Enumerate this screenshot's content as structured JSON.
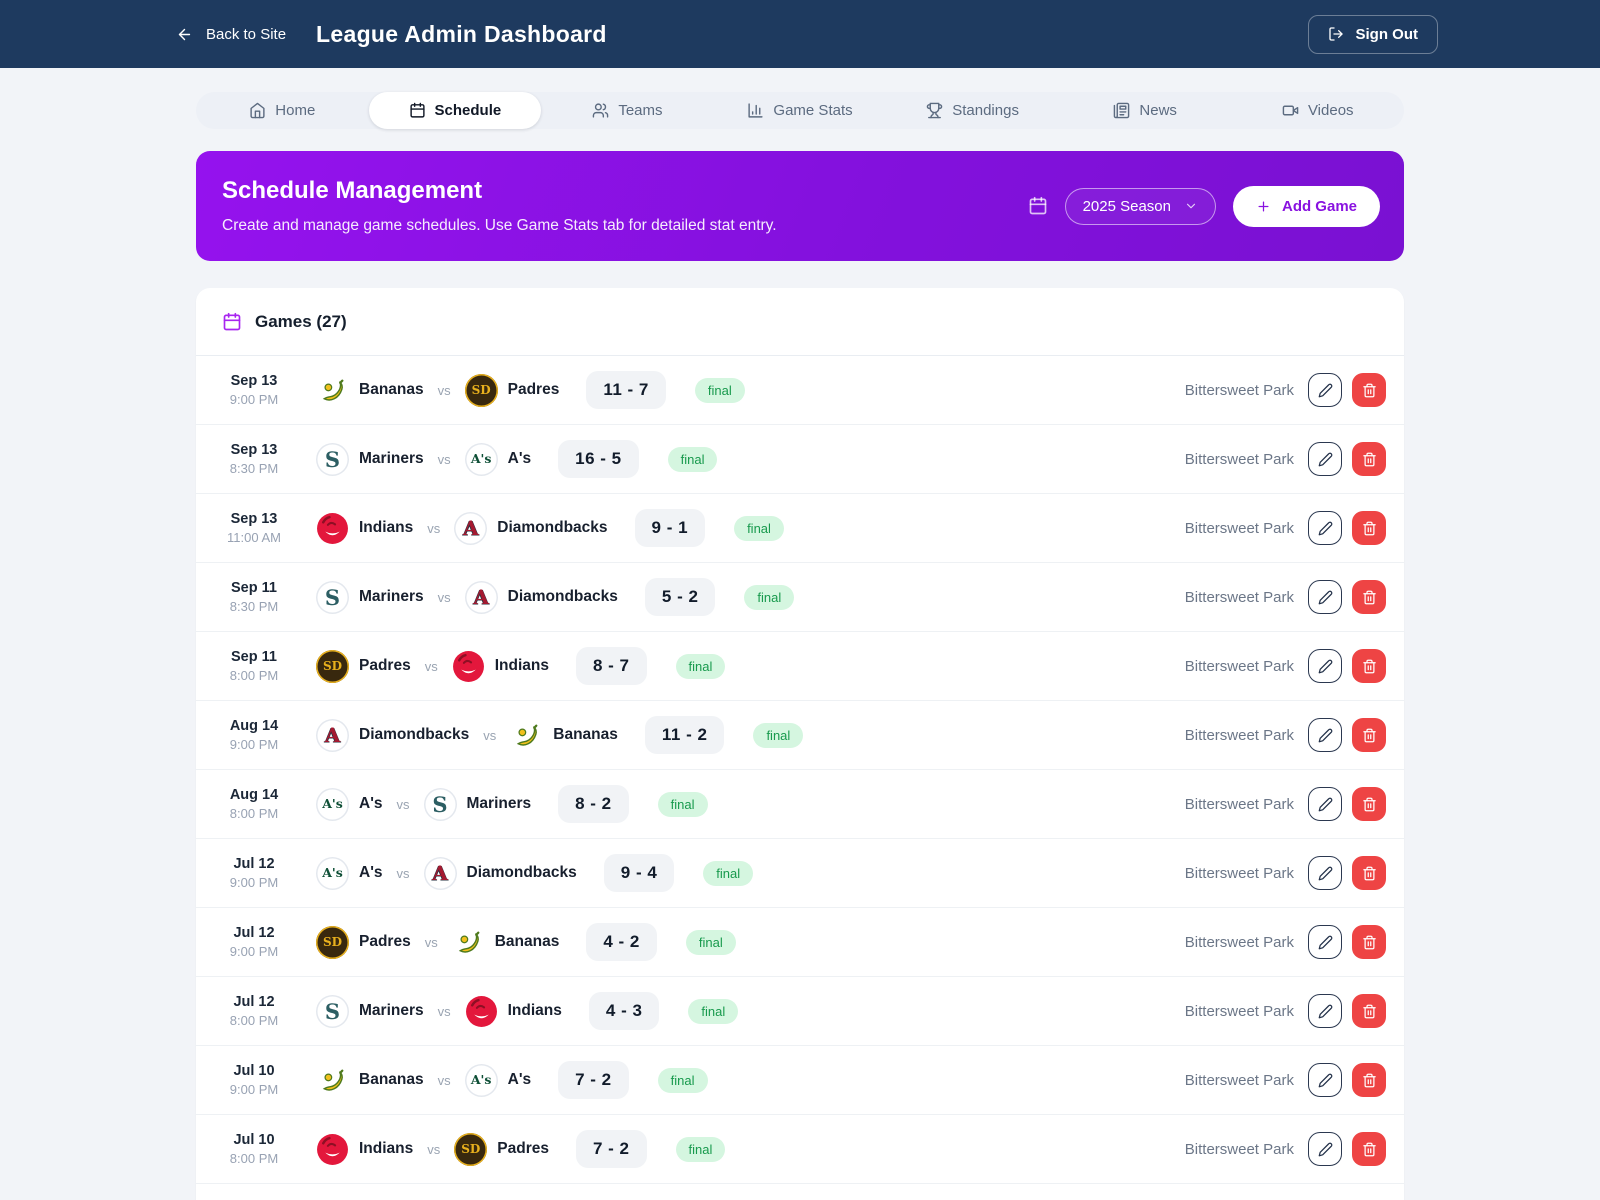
{
  "header": {
    "back_label": "Back to Site",
    "title": "League Admin Dashboard",
    "signout_label": "Sign Out"
  },
  "nav": {
    "tabs": [
      {
        "label": "Home",
        "icon": "home-icon",
        "active": false
      },
      {
        "label": "Schedule",
        "icon": "calendar-icon",
        "active": true
      },
      {
        "label": "Teams",
        "icon": "users-icon",
        "active": false
      },
      {
        "label": "Game Stats",
        "icon": "chart-icon",
        "active": false
      },
      {
        "label": "Standings",
        "icon": "trophy-icon",
        "active": false
      },
      {
        "label": "News",
        "icon": "news-icon",
        "active": false
      },
      {
        "label": "Videos",
        "icon": "video-icon",
        "active": false
      }
    ]
  },
  "banner": {
    "title": "Schedule Management",
    "subtitle": "Create and manage game schedules. Use Game Stats tab for detailed stat entry.",
    "season_icon": "calendar-icon",
    "season_value": "2025 Season",
    "add_game_label": "Add Game"
  },
  "games": {
    "title": "Games (27)",
    "vs_label": "vs",
    "rows": [
      {
        "date": "Sep 13",
        "time": "9:00 PM",
        "home": "Bananas",
        "away": "Padres",
        "score": "11 - 7",
        "status": "final",
        "venue": "Bittersweet Park"
      },
      {
        "date": "Sep 13",
        "time": "8:30 PM",
        "home": "Mariners",
        "away": "A's",
        "score": "16 - 5",
        "status": "final",
        "venue": "Bittersweet Park"
      },
      {
        "date": "Sep 13",
        "time": "11:00 AM",
        "home": "Indians",
        "away": "Diamondbacks",
        "score": "9 - 1",
        "status": "final",
        "venue": "Bittersweet Park"
      },
      {
        "date": "Sep 11",
        "time": "8:30 PM",
        "home": "Mariners",
        "away": "Diamondbacks",
        "score": "5 - 2",
        "status": "final",
        "venue": "Bittersweet Park"
      },
      {
        "date": "Sep 11",
        "time": "8:00 PM",
        "home": "Padres",
        "away": "Indians",
        "score": "8 - 7",
        "status": "final",
        "venue": "Bittersweet Park"
      },
      {
        "date": "Aug 14",
        "time": "9:00 PM",
        "home": "Diamondbacks",
        "away": "Bananas",
        "score": "11 - 2",
        "status": "final",
        "venue": "Bittersweet Park"
      },
      {
        "date": "Aug 14",
        "time": "8:00 PM",
        "home": "A's",
        "away": "Mariners",
        "score": "8 - 2",
        "status": "final",
        "venue": "Bittersweet Park"
      },
      {
        "date": "Jul 12",
        "time": "9:00 PM",
        "home": "A's",
        "away": "Diamondbacks",
        "score": "9 - 4",
        "status": "final",
        "venue": "Bittersweet Park"
      },
      {
        "date": "Jul 12",
        "time": "9:00 PM",
        "home": "Padres",
        "away": "Bananas",
        "score": "4 - 2",
        "status": "final",
        "venue": "Bittersweet Park"
      },
      {
        "date": "Jul 12",
        "time": "8:00 PM",
        "home": "Mariners",
        "away": "Indians",
        "score": "4 - 3",
        "status": "final",
        "venue": "Bittersweet Park"
      },
      {
        "date": "Jul 10",
        "time": "9:00 PM",
        "home": "Bananas",
        "away": "A's",
        "score": "7 - 2",
        "status": "final",
        "venue": "Bittersweet Park"
      },
      {
        "date": "Jul 10",
        "time": "8:00 PM",
        "home": "Indians",
        "away": "Padres",
        "score": "7 - 2",
        "status": "final",
        "venue": "Bittersweet Park"
      }
    ]
  },
  "team_logos": {
    "Bananas": {
      "kind": "banana",
      "colors": {
        "fruit": "#f2c11d",
        "leaf": "#4e7a1d",
        "bg": "#ffffff"
      }
    },
    "Padres": {
      "kind": "monogram",
      "text": "SD",
      "bg": "#38280e",
      "fg": "#e8b01d",
      "ring": "#e8b01d",
      "size": "12px"
    },
    "Mariners": {
      "kind": "monogram",
      "text": "S",
      "bg": "#ffffff",
      "fg": "#2c5e63",
      "ring": "#e4e8ee",
      "size": "21px"
    },
    "A's": {
      "kind": "monogram",
      "text": "A's",
      "bg": "#ffffff",
      "fg": "#0e4f36",
      "ring": "#e4e8ee",
      "size": "12.5px"
    },
    "Indians": {
      "kind": "wahoo",
      "colors": {
        "face": "#e3173c",
        "grin": "#ffffff",
        "dark": "#8e0f24"
      }
    },
    "Diamondbacks": {
      "kind": "monogram",
      "text": "A",
      "bg": "#ffffff",
      "fg": "#a51930",
      "ring": "#e4e8ee",
      "size": "20px",
      "outline": "#26323f"
    }
  },
  "colors": {
    "header_bg": "#1e3a5f",
    "page_bg": "#f2f4f8",
    "banner_gradient_start": "#9512ee",
    "banner_gradient_end": "#7a11d2",
    "accent_purple": "#8912e0",
    "final_badge_bg": "#d5f6e0",
    "final_badge_text": "#189a4d",
    "score_pill_bg": "#f1f3f6",
    "delete_red": "#ee4444",
    "venue_text": "#6b7687"
  }
}
